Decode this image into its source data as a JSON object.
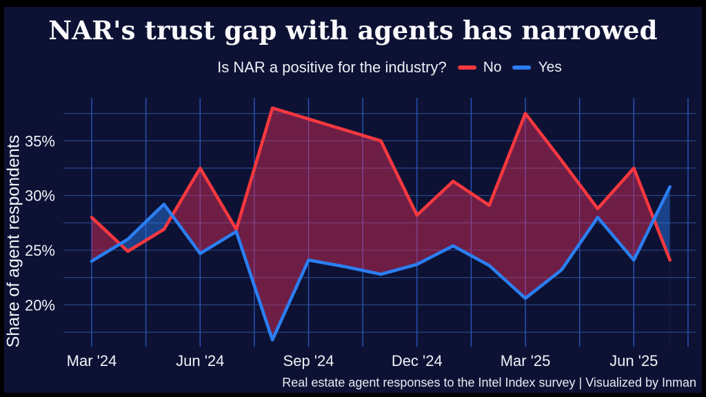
{
  "header": {
    "title": "NAR's trust gap with agents has narrowed"
  },
  "subtitle": {
    "question": "Is NAR a positive for the industry?"
  },
  "legend": [
    {
      "label": "No",
      "color": "#f8383f"
    },
    {
      "label": "Yes",
      "color": "#2b7ef2"
    }
  ],
  "y_axis": {
    "title": "Share of agent respondents",
    "tick_labels": [
      "35%",
      "30%",
      "25%",
      "20%"
    ]
  },
  "x_axis": {
    "tick_labels": [
      "Mar '24",
      "Jun '24",
      "Sep '24",
      "Dec '24",
      "Mar '25",
      "Jun '25"
    ]
  },
  "caption": "Real estate agent responses to the Intel Index survey | Visualized by Inman",
  "colors": {
    "background": "#0d1234",
    "frame": "#000000",
    "no_line": "#f8383f",
    "yes_line": "#2b7ef2",
    "no_fill": "rgba(228,46,92,0.45)",
    "yes_fill": "rgba(43,126,242,0.45)",
    "grid_vertical": "#2d5ecf",
    "grid_horizontal": "#35549f",
    "tick_text": "#f0f2f7"
  },
  "chart_data": {
    "type": "line",
    "title": "NAR's trust gap with agents has narrowed",
    "subtitle": "Is NAR a positive for the industry?",
    "x": [
      "Mar '24",
      "Apr '24",
      "May '24",
      "Jun '24",
      "Jul '24",
      "Aug '24",
      "Sep '24",
      "Oct '24",
      "Nov '24",
      "Dec '24",
      "Jan '25",
      "Feb '25",
      "Mar '25",
      "Apr '25",
      "May '25",
      "Jun '25",
      "Jul '25"
    ],
    "series": [
      {
        "name": "No",
        "color": "#f8383f",
        "values": [
          28.0,
          24.9,
          26.9,
          32.5,
          26.9,
          38.0,
          37.0,
          36.0,
          35.0,
          28.2,
          31.3,
          29.1,
          37.5,
          33.2,
          28.8,
          32.5,
          24.1
        ]
      },
      {
        "name": "Yes",
        "color": "#2b7ef2",
        "values": [
          24.0,
          26.0,
          29.2,
          24.7,
          26.7,
          16.8,
          24.1,
          23.5,
          22.8,
          23.7,
          25.4,
          23.6,
          20.6,
          23.2,
          28.0,
          24.1,
          30.8
        ]
      }
    ],
    "xlabel": "",
    "ylabel": "Share of agent respondents",
    "ylim": [
      16,
      39
    ],
    "y_ticks_labeled": [
      35,
      30,
      25,
      20
    ],
    "y_grid_step": 2.5,
    "x_labeled_every_n_months": 3,
    "x_grid_step_months": 1.5,
    "grid": true,
    "legend_position": "top",
    "fill_between_series": true
  }
}
